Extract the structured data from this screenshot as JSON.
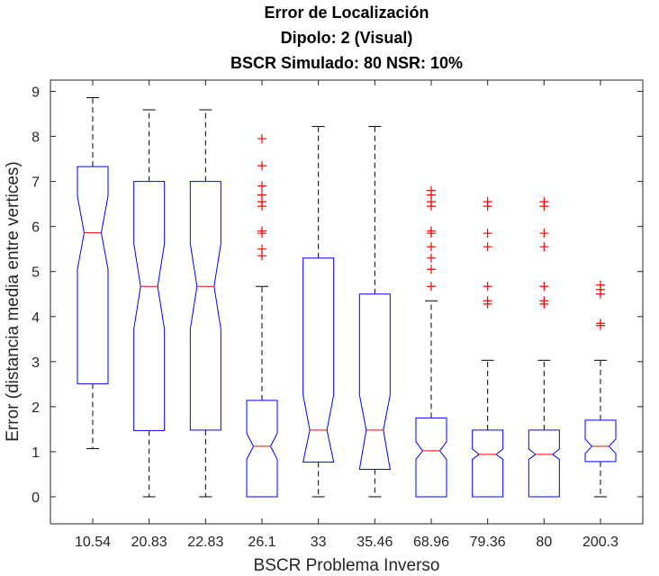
{
  "chart_data": {
    "type": "boxplot",
    "title": [
      "Error de Localización",
      "Dipolo: 2 (Visual)",
      "BSCR Simulado: 80 NSR: 10%"
    ],
    "xlabel": "BSCR Problema Inverso",
    "ylabel": "Error (distancia media entre vertices)",
    "ylim": [
      -0.6,
      9.25
    ],
    "yticks": [
      0,
      1,
      2,
      3,
      4,
      5,
      6,
      7,
      8,
      9
    ],
    "grid": false,
    "notched": true,
    "colors": {
      "box": "#0000ff",
      "median": "#ff0000",
      "whisker": "#000000",
      "outlier": "#ff0000",
      "axis": "#262626"
    },
    "categories": [
      "10.54",
      "20.83",
      "22.83",
      "26.1",
      "33",
      "35.46",
      "68.96",
      "79.36",
      "80",
      "200.3"
    ],
    "boxes": [
      {
        "whisker_low": 1.07,
        "q1": 2.51,
        "median": 5.86,
        "q3": 7.33,
        "whisker_high": 8.86,
        "notch_low": 5.05,
        "notch_high": 6.67,
        "outliers": []
      },
      {
        "whisker_low": 0.0,
        "q1": 1.47,
        "median": 4.67,
        "q3": 7.0,
        "whisker_high": 8.59,
        "notch_low": 3.72,
        "notch_high": 5.62,
        "outliers": []
      },
      {
        "whisker_low": 0.0,
        "q1": 1.48,
        "median": 4.67,
        "q3": 7.0,
        "whisker_high": 8.59,
        "notch_low": 3.72,
        "notch_high": 5.62,
        "outliers": []
      },
      {
        "whisker_low": 0.0,
        "q1": 0.0,
        "median": 1.12,
        "q3": 2.14,
        "whisker_high": 4.67,
        "notch_low": 0.83,
        "notch_high": 1.41,
        "outliers": [
          5.35,
          5.5,
          5.85,
          5.9,
          6.45,
          6.55,
          6.7,
          6.9,
          7.35,
          7.95
        ]
      },
      {
        "whisker_low": 0.0,
        "q1": 0.77,
        "median": 1.48,
        "q3": 5.3,
        "whisker_high": 8.22,
        "notch_low": 0.77,
        "notch_high": 2.26,
        "outliers": []
      },
      {
        "whisker_low": 0.0,
        "q1": 0.61,
        "median": 1.48,
        "q3": 4.5,
        "whisker_high": 8.22,
        "notch_low": 0.61,
        "notch_high": 2.26,
        "outliers": []
      },
      {
        "whisker_low": 0.0,
        "q1": 0.0,
        "median": 1.02,
        "q3": 1.75,
        "whisker_high": 4.35,
        "notch_low": 0.83,
        "notch_high": 1.22,
        "outliers": [
          4.67,
          5.05,
          5.3,
          5.55,
          5.85,
          5.9,
          6.45,
          6.55,
          6.7,
          6.8
        ]
      },
      {
        "whisker_low": 0.0,
        "q1": 0.0,
        "median": 0.94,
        "q3": 1.48,
        "whisker_high": 3.03,
        "notch_low": 0.83,
        "notch_high": 1.06,
        "outliers": [
          4.28,
          4.35,
          4.67,
          5.55,
          5.85,
          6.45,
          6.55
        ]
      },
      {
        "whisker_low": 0.0,
        "q1": 0.0,
        "median": 0.94,
        "q3": 1.48,
        "whisker_high": 3.03,
        "notch_low": 0.83,
        "notch_high": 1.06,
        "outliers": [
          4.28,
          4.35,
          4.67,
          5.55,
          5.85,
          6.45,
          6.55
        ]
      },
      {
        "whisker_low": 0.0,
        "q1": 0.78,
        "median": 1.12,
        "q3": 1.7,
        "whisker_high": 3.03,
        "notch_low": 0.96,
        "notch_high": 1.28,
        "outliers": [
          3.8,
          3.85,
          4.5,
          4.6,
          4.7
        ]
      }
    ]
  }
}
